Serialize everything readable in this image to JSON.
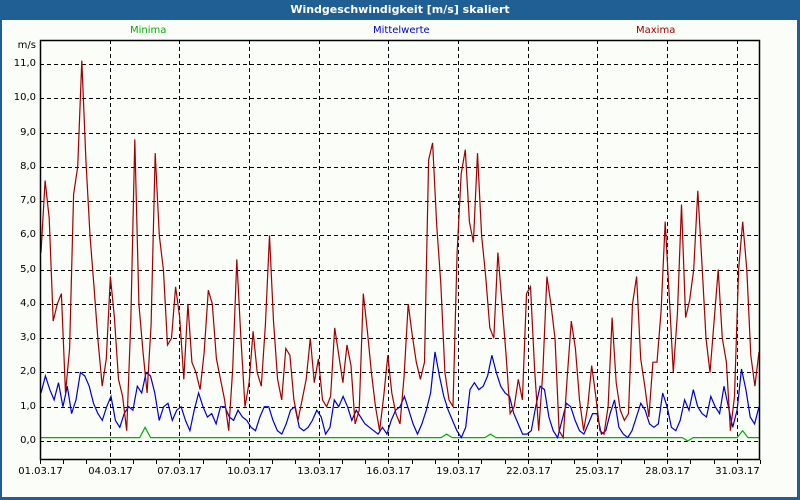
{
  "window": {
    "title": "Windgeschwindigkeit [m/s] skaliert"
  },
  "chart_data": {
    "type": "line",
    "title": "Windgeschwindigkeit [m/s] skaliert",
    "xlabel": "",
    "ylabel": "m/s",
    "ylim": [
      -0.5,
      11.5
    ],
    "grid": true,
    "legend_position": "top",
    "y_ticks": [
      "0,0",
      "1,0",
      "2,0",
      "3,0",
      "4,0",
      "5,0",
      "6,0",
      "7,0",
      "8,0",
      "9,0",
      "10,0",
      "11,0"
    ],
    "x_ticks": [
      "01.03.17",
      "04.03.17",
      "07.03.17",
      "10.03.17",
      "13.03.17",
      "16.03.17",
      "19.03.17",
      "22.03.17",
      "25.03.17",
      "28.03.17",
      "31.03.17"
    ],
    "x_start_day": 1,
    "x_end_day": 32,
    "colors": {
      "Minima": "#00b000",
      "Mittelwerte": "#0000c8",
      "Maxima": "#a00000"
    },
    "series": [
      {
        "name": "Minima",
        "note": "sampled approx every 0.5 day",
        "values": [
          0.1,
          0.1,
          0.1,
          0.1,
          0.1,
          0.1,
          0.1,
          0.1,
          0.1,
          0.1,
          0.1,
          0.1,
          0.1,
          0.1,
          0.1,
          0.1,
          0.1,
          0.1,
          0.1,
          0.4,
          0.1,
          0.1,
          0.1,
          0.1,
          0.1,
          0.1,
          0.1,
          0.1,
          0.1,
          0.1,
          0.1,
          0.1,
          0.1,
          0.1,
          0.1,
          0.1,
          0.1,
          0.1,
          0.1,
          0.1,
          0.1,
          0.1,
          0.1,
          0.1,
          0.1,
          0.1,
          0.1,
          0.1,
          0.1,
          0.1,
          0.1,
          0.1,
          0.1,
          0.1,
          0.1,
          0.1,
          0.1,
          0.1,
          0.1,
          0.1,
          0.1,
          0.1,
          0.1,
          0.1,
          0.1,
          0.1,
          0.1,
          0.1,
          0.1,
          0.1,
          0.1,
          0.1,
          0.1,
          0.1,
          0.2,
          0.1,
          0.1,
          0.1,
          0.1,
          0.1,
          0.1,
          0.1,
          0.2,
          0.1,
          0.1,
          0.1,
          0.1,
          0.1,
          0.1,
          0.1,
          0.1,
          0.1,
          0.1,
          0.1,
          0.1,
          0.1,
          0.1,
          0.1,
          0.1,
          0.1,
          0.1,
          0.1,
          0.1,
          0.1,
          0.1,
          0.1,
          0.1,
          0.1,
          0.1,
          0.1,
          0.1,
          0.1,
          0.1,
          0.1,
          0.1,
          0.1,
          0.1,
          0.1,
          0.0,
          0.1,
          0.1,
          0.1,
          0.1,
          0.1,
          0.1,
          0.1,
          0.1,
          0.1,
          0.3,
          0.1,
          0.1,
          0.1
        ]
      },
      {
        "name": "Mittelwerte",
        "note": "sampled approx every 0.25 day",
        "values": [
          1.4,
          1.9,
          1.5,
          1.2,
          1.7,
          1.0,
          1.6,
          0.8,
          1.2,
          2.0,
          1.9,
          1.6,
          1.1,
          0.8,
          0.6,
          1.0,
          1.3,
          0.6,
          0.4,
          0.8,
          1.0,
          0.9,
          1.6,
          1.4,
          2.0,
          1.9,
          1.4,
          0.6,
          1.0,
          1.1,
          0.6,
          0.9,
          1.0,
          0.6,
          0.3,
          0.9,
          1.4,
          1.0,
          0.7,
          0.8,
          0.5,
          1.0,
          1.0,
          0.7,
          0.6,
          0.9,
          0.7,
          0.6,
          0.4,
          0.3,
          0.7,
          1.0,
          1.0,
          0.6,
          0.3,
          0.2,
          0.5,
          0.9,
          1.0,
          0.4,
          0.3,
          0.4,
          0.6,
          0.9,
          0.7,
          0.2,
          0.4,
          1.2,
          1.0,
          1.3,
          1.0,
          0.6,
          0.9,
          0.7,
          0.5,
          0.4,
          0.3,
          0.2,
          0.4,
          0.2,
          0.6,
          0.9,
          1.0,
          1.3,
          0.9,
          0.5,
          0.2,
          0.5,
          0.9,
          1.4,
          2.6,
          1.9,
          1.3,
          0.9,
          0.6,
          0.3,
          0.1,
          0.4,
          1.5,
          1.7,
          1.5,
          1.6,
          1.9,
          2.5,
          2.0,
          1.6,
          1.4,
          1.3,
          0.8,
          0.5,
          0.2,
          0.2,
          0.3,
          1.0,
          1.6,
          1.5,
          0.7,
          0.3,
          0.1,
          0.6,
          1.1,
          1.0,
          0.6,
          0.3,
          0.2,
          0.5,
          0.8,
          0.8,
          0.2,
          0.3,
          0.8,
          1.2,
          0.4,
          0.2,
          0.1,
          0.3,
          0.7,
          1.1,
          0.9,
          0.5,
          0.4,
          0.5,
          1.4,
          1.0,
          0.4,
          0.3,
          0.6,
          1.2,
          0.9,
          1.5,
          1.0,
          0.8,
          0.7,
          1.3,
          1.0,
          0.8,
          1.6,
          1.0,
          0.4,
          0.9,
          2.1,
          1.5,
          0.7,
          0.5,
          1.0
        ]
      },
      {
        "name": "Maxima",
        "note": "sampled approx every 0.25 day",
        "values": [
          5.5,
          7.6,
          6.5,
          3.5,
          4.0,
          4.3,
          1.4,
          2.7,
          7.2,
          8.0,
          11.1,
          8.2,
          6.0,
          4.5,
          2.9,
          1.6,
          2.4,
          4.8,
          3.6,
          1.8,
          1.3,
          0.3,
          3.5,
          8.8,
          4.0,
          2.6,
          1.4,
          3.4,
          8.4,
          6.0,
          5.0,
          2.8,
          3.0,
          4.5,
          3.6,
          1.8,
          4.0,
          2.3,
          2.0,
          1.5,
          2.6,
          4.4,
          4.0,
          2.4,
          1.8,
          1.2,
          0.3,
          2.1,
          5.3,
          3.0,
          1.0,
          1.7,
          3.2,
          2.0,
          1.6,
          3.4,
          6.0,
          3.5,
          1.8,
          1.2,
          2.7,
          2.5,
          1.2,
          0.6,
          1.2,
          1.8,
          3.0,
          1.7,
          2.4,
          1.2,
          1.0,
          1.3,
          3.3,
          2.5,
          1.7,
          2.8,
          2.2,
          0.5,
          0.9,
          4.3,
          3.2,
          2.0,
          1.0,
          0.3,
          1.3,
          2.5,
          1.4,
          0.8,
          0.5,
          1.9,
          4.0,
          3.1,
          2.3,
          1.8,
          2.3,
          8.2,
          8.7,
          6.3,
          4.6,
          2.0,
          1.2,
          1.0,
          5.5,
          7.8,
          8.5,
          6.4,
          5.8,
          8.4,
          6.0,
          4.8,
          3.3,
          3.0,
          5.5,
          4.0,
          2.5,
          0.8,
          1.0,
          1.8,
          1.2,
          4.3,
          4.5,
          2.1,
          0.3,
          2.0,
          4.8,
          4.0,
          3.0,
          0.3,
          0.1,
          1.9,
          3.5,
          2.7,
          1.2,
          0.3,
          1.0,
          2.2,
          1.3,
          0.3,
          0.2,
          1.0,
          3.6,
          1.7,
          0.9,
          0.6,
          0.8,
          4.0,
          4.8,
          2.4,
          1.6,
          0.7,
          2.3,
          2.3,
          3.8,
          6.4,
          4.2,
          2.0,
          3.7,
          6.9,
          3.6,
          4.1,
          5.0,
          7.3,
          5.2,
          3.0,
          2.0,
          3.5,
          5.0,
          3.0,
          2.3,
          0.3,
          1.3,
          5.0,
          6.4,
          5.0,
          2.5,
          1.6,
          2.6
        ]
      }
    ]
  },
  "legend": {
    "minima": "Minima",
    "mittelwerte": "Mittelwerte",
    "maxima": "Maxima"
  },
  "axis": {
    "unit": "m/s"
  }
}
